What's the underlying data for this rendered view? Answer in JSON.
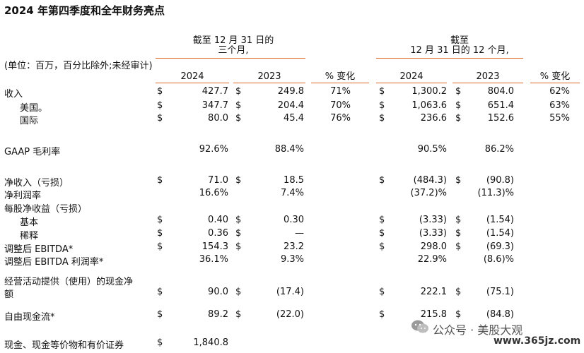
{
  "title": "2024 年第四季度和全年财务亮点",
  "header": {
    "units": "(单位：百万，百分比除外;未经审计)",
    "q_period_line1": "截至 12 月 31 日的",
    "q_period_line2": "三个月,",
    "y_period_line1": "截至",
    "y_period_line2": "12 月 31 日的 12 个月,",
    "col_2024": "2024",
    "col_2023": "2023",
    "col_change": "% 变化",
    "col_2024b": "2024",
    "col_2023b": "2023",
    "col_changeb": "% 变化"
  },
  "rows": [
    {
      "label": "收入",
      "c1": "$",
      "q24": "427.7",
      "c2": "$",
      "q23": "249.8",
      "qchg": "71%",
      "c3": "$",
      "y24": "1,300.2",
      "c4": "$",
      "y23": "804.0",
      "ychg": "62%"
    },
    {
      "label": "美国。",
      "c1": "$",
      "q24": "347.7",
      "c2": "$",
      "q23": "204.4",
      "qchg": "70%",
      "c3": "$",
      "y24": "1,063.6",
      "c4": "$",
      "y23": "651.4",
      "ychg": "63%"
    },
    {
      "label": "国际",
      "c1": "$",
      "q24": "80.0",
      "c2": "$",
      "q23": "45.4",
      "qchg": "76%",
      "c3": "$",
      "y24": "236.6",
      "c4": "$",
      "y23": "152.6",
      "ychg": "55%"
    },
    {
      "label": "GAAP 毛利率",
      "q24": "92.6%",
      "q23": "88.4%",
      "y24": "90.5%",
      "y23": "86.2%"
    },
    {
      "label": "净收入（亏损）",
      "c1": "$",
      "q24": "71.0",
      "c2": "$",
      "q23": "18.5",
      "c3": "$",
      "y24": "(484.3)",
      "c4": "$",
      "y23": "(90.8)"
    },
    {
      "label": "净利润率",
      "q24": "16.6%",
      "q23": "7.4%",
      "y24": "(37.2)%",
      "y23": "(11.3)%"
    },
    {
      "label": "每股净收益（亏损）"
    },
    {
      "label": "基本",
      "c1": "$",
      "q24": "0.40",
      "c2": "$",
      "q23": "0.30",
      "c3": "$",
      "y24": "(3.33)",
      "c4": "$",
      "y23": "(1.54)"
    },
    {
      "label": "稀释",
      "c1": "$",
      "q24": "0.36",
      "c2": "$",
      "q23": "—",
      "c3": "$",
      "y24": "(3.33)",
      "c4": "$",
      "y23": "(1.54)"
    },
    {
      "label": "调整后 EBITDA*",
      "c1": "$",
      "q24": "154.3",
      "c2": "$",
      "q23": "23.2",
      "c3": "$",
      "y24": "298.0",
      "c4": "$",
      "y23": "(69.3)"
    },
    {
      "label": "调整后 EBITDA 利润率*",
      "q24": "36.1%",
      "q23": "9.3%",
      "y24": "22.9%",
      "y23": "(8.6)%"
    },
    {
      "label_line1": "经营活动提供（使用）的现金净",
      "label_line2": "额",
      "c1": "$",
      "q24": "90.0",
      "c2": "$",
      "q23": "(17.4)",
      "c3": "$",
      "y24": "222.1",
      "c4": "$",
      "y23": "(75.1)"
    },
    {
      "label": "自由现金流*",
      "c1": "$",
      "q24": "89.2",
      "c2": "$",
      "q23": "(22.0)",
      "c3": "$",
      "y24": "215.8",
      "c4": "$",
      "y23": "(84.8)"
    },
    {
      "label": "现金、现金等价物和有价证券",
      "c1": "$",
      "q24": "1,840.8"
    }
  ],
  "watermark": "公众号 · 美股大观",
  "watermark_icon": "wechat-icon",
  "url": "www.365jz.com",
  "colors": {
    "rule": "#e36a2a",
    "text": "#111111"
  }
}
